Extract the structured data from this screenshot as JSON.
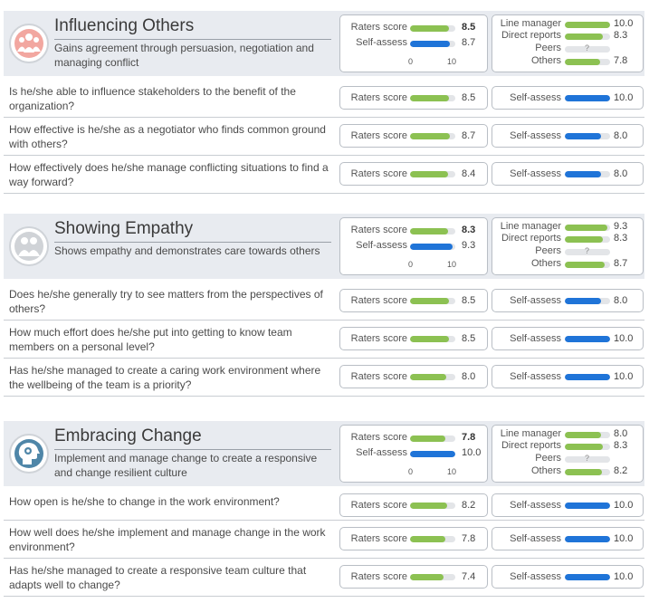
{
  "labels": {
    "raters_score": "Raters score",
    "self_assess": "Self-assess",
    "line_manager": "Line manager",
    "direct_reports": "Direct reports",
    "peers": "Peers",
    "others": "Others",
    "axis_min": "0",
    "axis_max": "10",
    "unknown": "?"
  },
  "colors": {
    "raters_bar": "#8cc152",
    "self_bar": "#1f74d8",
    "header_bg": "#e8ebf0"
  },
  "competencies": [
    {
      "title": "Influencing Others",
      "description": "Gains agreement through persuasion, negotiation and managing conflict",
      "icon": "people-group-icon",
      "raters_score": "8.5",
      "raters_value": 8.5,
      "self_assess": "8.7",
      "self_value": 8.7,
      "line_manager": "10.0",
      "line_manager_value": 10.0,
      "direct_reports": "8.3",
      "direct_reports_value": 8.3,
      "peers": "",
      "peers_value": 0,
      "others": "7.8",
      "others_value": 7.8,
      "questions": [
        {
          "text": "Is he/she able to influence stakeholders to the benefit of the organization?",
          "raters": "8.5",
          "raters_value": 8.5,
          "self": "10.0",
          "self_value": 10.0
        },
        {
          "text": "How effective is he/she as a negotiator who finds common ground with others?",
          "raters": "8.7",
          "raters_value": 8.7,
          "self": "8.0",
          "self_value": 8.0
        },
        {
          "text": "How effectively does he/she manage conflicting situations to find a way forward?",
          "raters": "8.4",
          "raters_value": 8.4,
          "self": "8.0",
          "self_value": 8.0
        }
      ]
    },
    {
      "title": "Showing Empathy",
      "description": "Shows empathy and demonstrates care towards others",
      "icon": "people-conversation-icon",
      "raters_score": "8.3",
      "raters_value": 8.3,
      "self_assess": "9.3",
      "self_value": 9.3,
      "line_manager": "9.3",
      "line_manager_value": 9.3,
      "direct_reports": "8.3",
      "direct_reports_value": 8.3,
      "peers": "",
      "peers_value": 0,
      "others": "8.7",
      "others_value": 8.7,
      "questions": [
        {
          "text": "Does he/she generally try to see matters from the perspectives of others?",
          "raters": "8.5",
          "raters_value": 8.5,
          "self": "8.0",
          "self_value": 8.0
        },
        {
          "text": "How much effort does he/she put into getting to know team members on a personal level?",
          "raters": "8.5",
          "raters_value": 8.5,
          "self": "10.0",
          "self_value": 10.0
        },
        {
          "text": "Has he/she managed to create a caring work environment where the wellbeing of the team is a priority?",
          "raters": "8.0",
          "raters_value": 8.0,
          "self": "10.0",
          "self_value": 10.0
        }
      ]
    },
    {
      "title": "Embracing Change",
      "description": "Implement and manage change to create a responsive and change resilient culture",
      "icon": "head-gears-icon",
      "raters_score": "7.8",
      "raters_value": 7.8,
      "self_assess": "10.0",
      "self_value": 10.0,
      "line_manager": "8.0",
      "line_manager_value": 8.0,
      "direct_reports": "8.3",
      "direct_reports_value": 8.3,
      "peers": "",
      "peers_value": 0,
      "others": "8.2",
      "others_value": 8.2,
      "questions": [
        {
          "text": "How open is he/she to change in the work environment?",
          "raters": "8.2",
          "raters_value": 8.2,
          "self": "10.0",
          "self_value": 10.0
        },
        {
          "text": "How well does he/she implement and manage change in the work environment?",
          "raters": "7.8",
          "raters_value": 7.8,
          "self": "10.0",
          "self_value": 10.0
        },
        {
          "text": "Has he/she managed to create a responsive team culture that adapts well to change?",
          "raters": "7.4",
          "raters_value": 7.4,
          "self": "10.0",
          "self_value": 10.0
        }
      ]
    }
  ]
}
